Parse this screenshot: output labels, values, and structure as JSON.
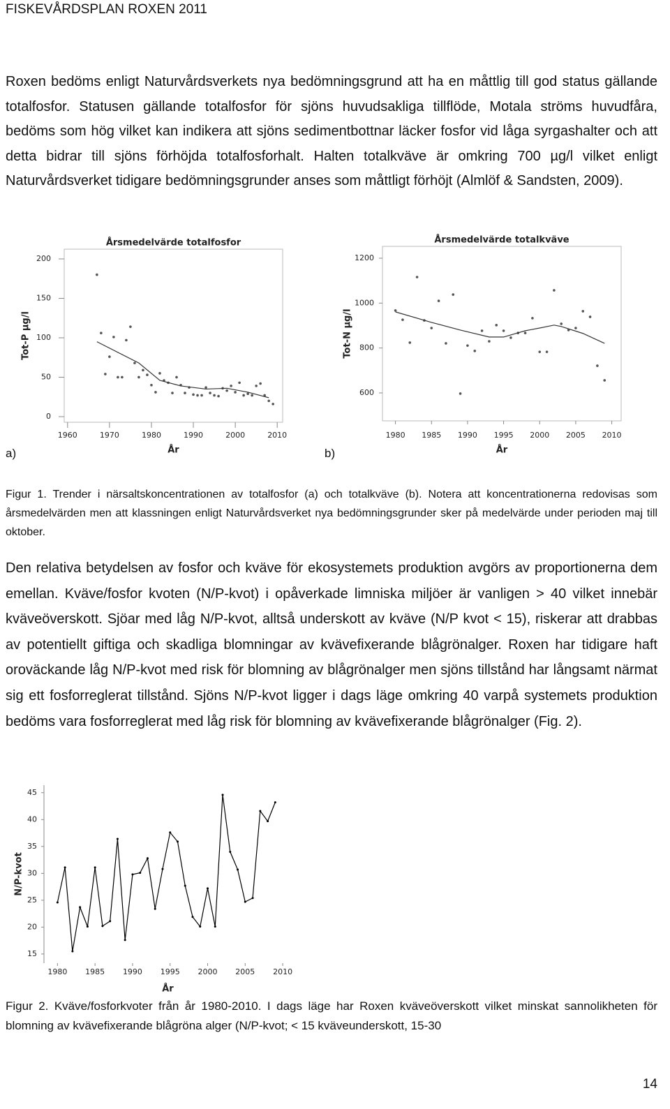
{
  "header": "FISKEVÅRDSPLAN ROXEN 2011",
  "paragraphs": [
    "Roxen bedöms enligt Naturvårdsverkets nya bedömningsgrund att ha en måttlig till god status gällande totalfosfor. Statusen gällande totalfosfor för sjöns huvudsakliga tillflöde, Motala ströms huvudfåra, bedöms som hög vilket kan indikera att sjöns sedimentbottnar läcker fosfor vid låga syrgashalter och att detta bidrar till sjöns förhöjda totalfosforhalt. Halten totalkväve är omkring 700 µg/l vilket enligt Naturvårdsverket tidigare bedömningsgrunder anses som måttligt förhöjt (Almlöf & Sandsten, 2009).",
    "Den relativa betydelsen av fosfor och kväve för ekosystemets produktion avgörs av proportionerna dem emellan. Kväve/fosfor kvoten (N/P-kvot) i opåverkade limniska miljöer är vanligen > 40 vilket innebär kväveöverskott. Sjöar med låg N/P-kvot, alltså underskott av kväve (N/P kvot < 15), riskerar att drabbas av potentiellt giftiga och skadliga blomningar av kvävefixerande blågrönalger. Roxen har tidigare haft oroväckande låg N/P-kvot med risk för blomning av blågrönalger men sjöns tillstånd har långsamt närmat sig ett fosforreglerat tillstånd. Sjöns N/P-kvot ligger i dags läge omkring 40 varpå systemets produktion bedöms vara fosforreglerat med låg risk för blomning av kvävefixerande blågrönalger (Fig. 2)."
  ],
  "figure1": {
    "panel_labels": [
      "a)",
      "b)"
    ],
    "caption": "Figur 1. Trender i närsaltskoncentrationen av totalfosfor (a) och totalkväve (b). Notera att koncentrationerna redovisas som årsmedelvärden men att klassningen enligt Naturvårdsverket nya bedömningsgrunder sker på medelvärde under perioden maj till oktober."
  },
  "figure2": {
    "caption": "Figur 2. Kväve/fosforkvoter från år 1980-2010. I dags läge har Roxen kväveöverskott vilket minskat sannolikheten för blomning av kvävefixerande blågröna alger (N/P-kvot; < 15 kväveunderskott, 15-30"
  },
  "page_number": "14",
  "chart_data": [
    {
      "type": "scatter",
      "title": "Årsmedelvärde totalfosfor",
      "x_label": "År",
      "y_label": "Tot-P µg/l",
      "xlim": [
        1959.2,
        2011.3
      ],
      "ylim": [
        -7.1,
        212.4
      ],
      "xticks": [
        1960,
        1970,
        1980,
        1990,
        2000,
        2010
      ],
      "yticks": [
        0,
        50,
        100,
        150,
        200
      ],
      "grid": false,
      "frame": true,
      "series": [
        {
          "mode": "markers",
          "color": "#555555",
          "x": [
            1967,
            1968,
            1969,
            1970,
            1971,
            1972,
            1973,
            1974,
            1975,
            1976,
            1977,
            1978,
            1979,
            1980,
            1981,
            1982,
            1983,
            1984,
            1985,
            1986,
            1987,
            1988,
            1989,
            1990,
            1991,
            1992,
            1993,
            1994,
            1995,
            1996,
            1997,
            1998,
            1999,
            2000,
            2001,
            2002,
            2003,
            2004,
            2005,
            2006,
            2007,
            2008,
            2009
          ],
          "values": [
            180,
            106,
            54,
            76,
            101,
            50,
            50,
            97,
            114,
            68,
            50,
            59,
            53,
            40,
            31,
            55,
            46,
            43,
            30,
            50,
            40,
            30,
            37,
            28,
            27,
            27,
            37,
            30,
            27,
            26,
            36,
            33,
            39,
            31,
            43,
            27,
            29,
            27,
            39,
            42,
            27,
            20,
            16
          ]
        },
        {
          "mode": "line",
          "color": "#333333",
          "x": [
            1967,
            1977,
            1982,
            1987,
            1993,
            1998,
            2003,
            2008
          ],
          "values": [
            95,
            68,
            46,
            39,
            35,
            36,
            31,
            24
          ]
        }
      ]
    },
    {
      "type": "scatter",
      "title": "Årsmedelvärde totalkväve",
      "x_label": "År",
      "y_label": "Tot-N µg/l",
      "xlim": [
        1978.2,
        2011.3
      ],
      "ylim": [
        475.6,
        1252.8
      ],
      "xticks": [
        1980,
        1985,
        1990,
        1995,
        2000,
        2005,
        2010
      ],
      "yticks": [
        600,
        800,
        1000,
        1200
      ],
      "grid": false,
      "frame": true,
      "series": [
        {
          "mode": "markers",
          "color": "#555555",
          "x": [
            1980,
            1981,
            1982,
            1983,
            1984,
            1985,
            1986,
            1987,
            1988,
            1989,
            1990,
            1991,
            1992,
            1993,
            1994,
            1995,
            1996,
            1997,
            1998,
            1999,
            2000,
            2001,
            2002,
            2003,
            2004,
            2005,
            2006,
            2007,
            2008,
            2009
          ],
          "values": [
            967,
            926,
            824,
            1116,
            923,
            889,
            1010,
            821,
            1038,
            597,
            811,
            787,
            877,
            830,
            902,
            877,
            846,
            867,
            867,
            933,
            783,
            783,
            1057,
            908,
            880,
            889,
            964,
            939,
            721,
            656
          ]
        },
        {
          "mode": "line",
          "color": "#333333",
          "x": [
            1980,
            1985,
            1989,
            1993,
            1995,
            1998,
            2000,
            2002,
            2003,
            2006,
            2009
          ],
          "values": [
            961,
            914,
            880,
            849,
            849,
            877,
            889,
            902,
            896,
            865,
            821
          ]
        }
      ]
    },
    {
      "type": "line",
      "x_label": "År",
      "y_label": "N/P-kvot",
      "xlim": [
        1978.2,
        2011.2
      ],
      "ylim": [
        13.3,
        46.4
      ],
      "xticks": [
        1980,
        1985,
        1990,
        1995,
        2000,
        2005,
        2010
      ],
      "yticks": [
        15,
        20,
        25,
        30,
        35,
        40,
        45
      ],
      "grid": false,
      "frame": false,
      "series": [
        {
          "mode": "line+markers",
          "color": "#000000",
          "x": [
            1980,
            1981,
            1982,
            1983,
            1984,
            1985,
            1986,
            1987,
            1988,
            1989,
            1990,
            1991,
            1992,
            1993,
            1994,
            1995,
            1996,
            1997,
            1998,
            1999,
            2000,
            2001,
            2002,
            2003,
            2004,
            2005,
            2006,
            2007,
            2008,
            2009
          ],
          "values": [
            24.6,
            31.1,
            15.5,
            23.7,
            20.1,
            31.1,
            20.2,
            21.1,
            36.4,
            17.6,
            29.8,
            30.1,
            32.8,
            23.4,
            30.8,
            37.6,
            35.9,
            27.7,
            21.9,
            20.1,
            27.2,
            20.1,
            44.6,
            34.0,
            30.7,
            24.7,
            25.4,
            41.6,
            39.7,
            43.2
          ]
        }
      ]
    }
  ]
}
